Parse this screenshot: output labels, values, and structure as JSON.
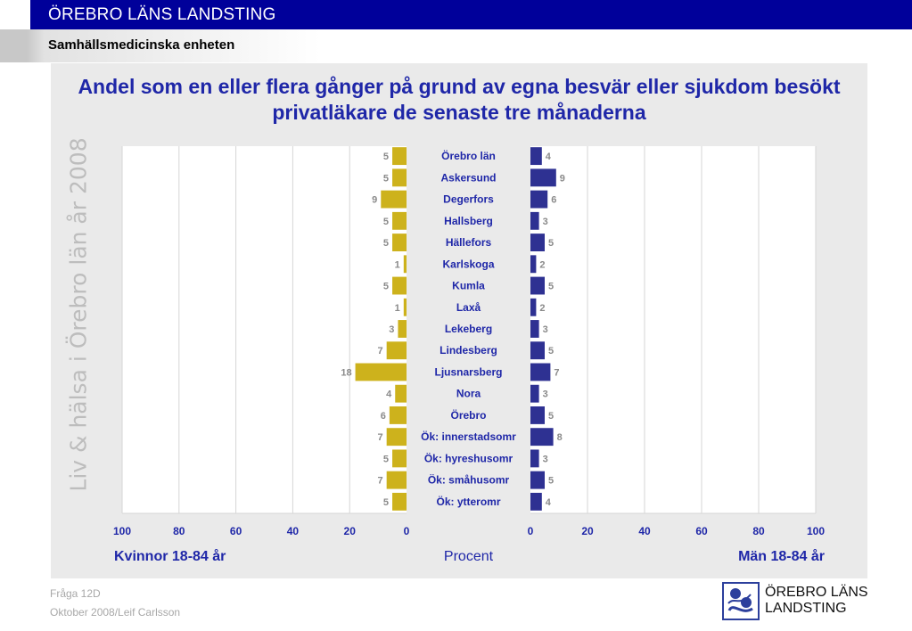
{
  "header": {
    "title": "ÖREBRO LÄNS LANDSTING",
    "subtitle": "Samhällsmedicinska enheten"
  },
  "side_text": "Liv & hälsa i Örebro län år 2008",
  "footer": {
    "question": "Fråga 12D",
    "date_author": "Oktober 2008/Leif Carlsson"
  },
  "logo": {
    "line1": "ÖREBRO LÄNS",
    "line2": "LANDSTING",
    "icon": "landsting-emblem-icon"
  },
  "colors": {
    "women": "#cdb21c",
    "men": "#2e3192",
    "title": "#1f27a8",
    "header": "#00009a"
  },
  "chart_data": {
    "type": "bar",
    "orientation": "horizontal-butterfly",
    "title": "Andel som en eller flera gånger på grund av egna besvär eller sjukdom besökt privatläkare de senaste tre månaderna",
    "xlabel": "Procent",
    "xlim": [
      0,
      100
    ],
    "x_ticks": [
      0,
      20,
      40,
      60,
      80,
      100
    ],
    "grid": true,
    "categories": [
      "Örebro län",
      "Askersund",
      "Degerfors",
      "Hallsberg",
      "Hällefors",
      "Karlskoga",
      "Kumla",
      "Laxå",
      "Lekeberg",
      "Lindesberg",
      "Ljusnarsberg",
      "Nora",
      "Örebro",
      "Ök: innerstadsomr",
      "Ök: hyreshusomr",
      "Ök: småhusomr",
      "Ök: ytteromr"
    ],
    "series": [
      {
        "name": "Kvinnor 18-84 år",
        "side": "left",
        "values": [
          5,
          5,
          9,
          5,
          5,
          1,
          5,
          1,
          3,
          7,
          18,
          4,
          6,
          7,
          5,
          7,
          5
        ]
      },
      {
        "name": "Män 18-84 år",
        "side": "right",
        "values": [
          4,
          9,
          6,
          3,
          5,
          2,
          5,
          2,
          3,
          5,
          7,
          3,
          5,
          8,
          3,
          5,
          4
        ]
      }
    ]
  }
}
